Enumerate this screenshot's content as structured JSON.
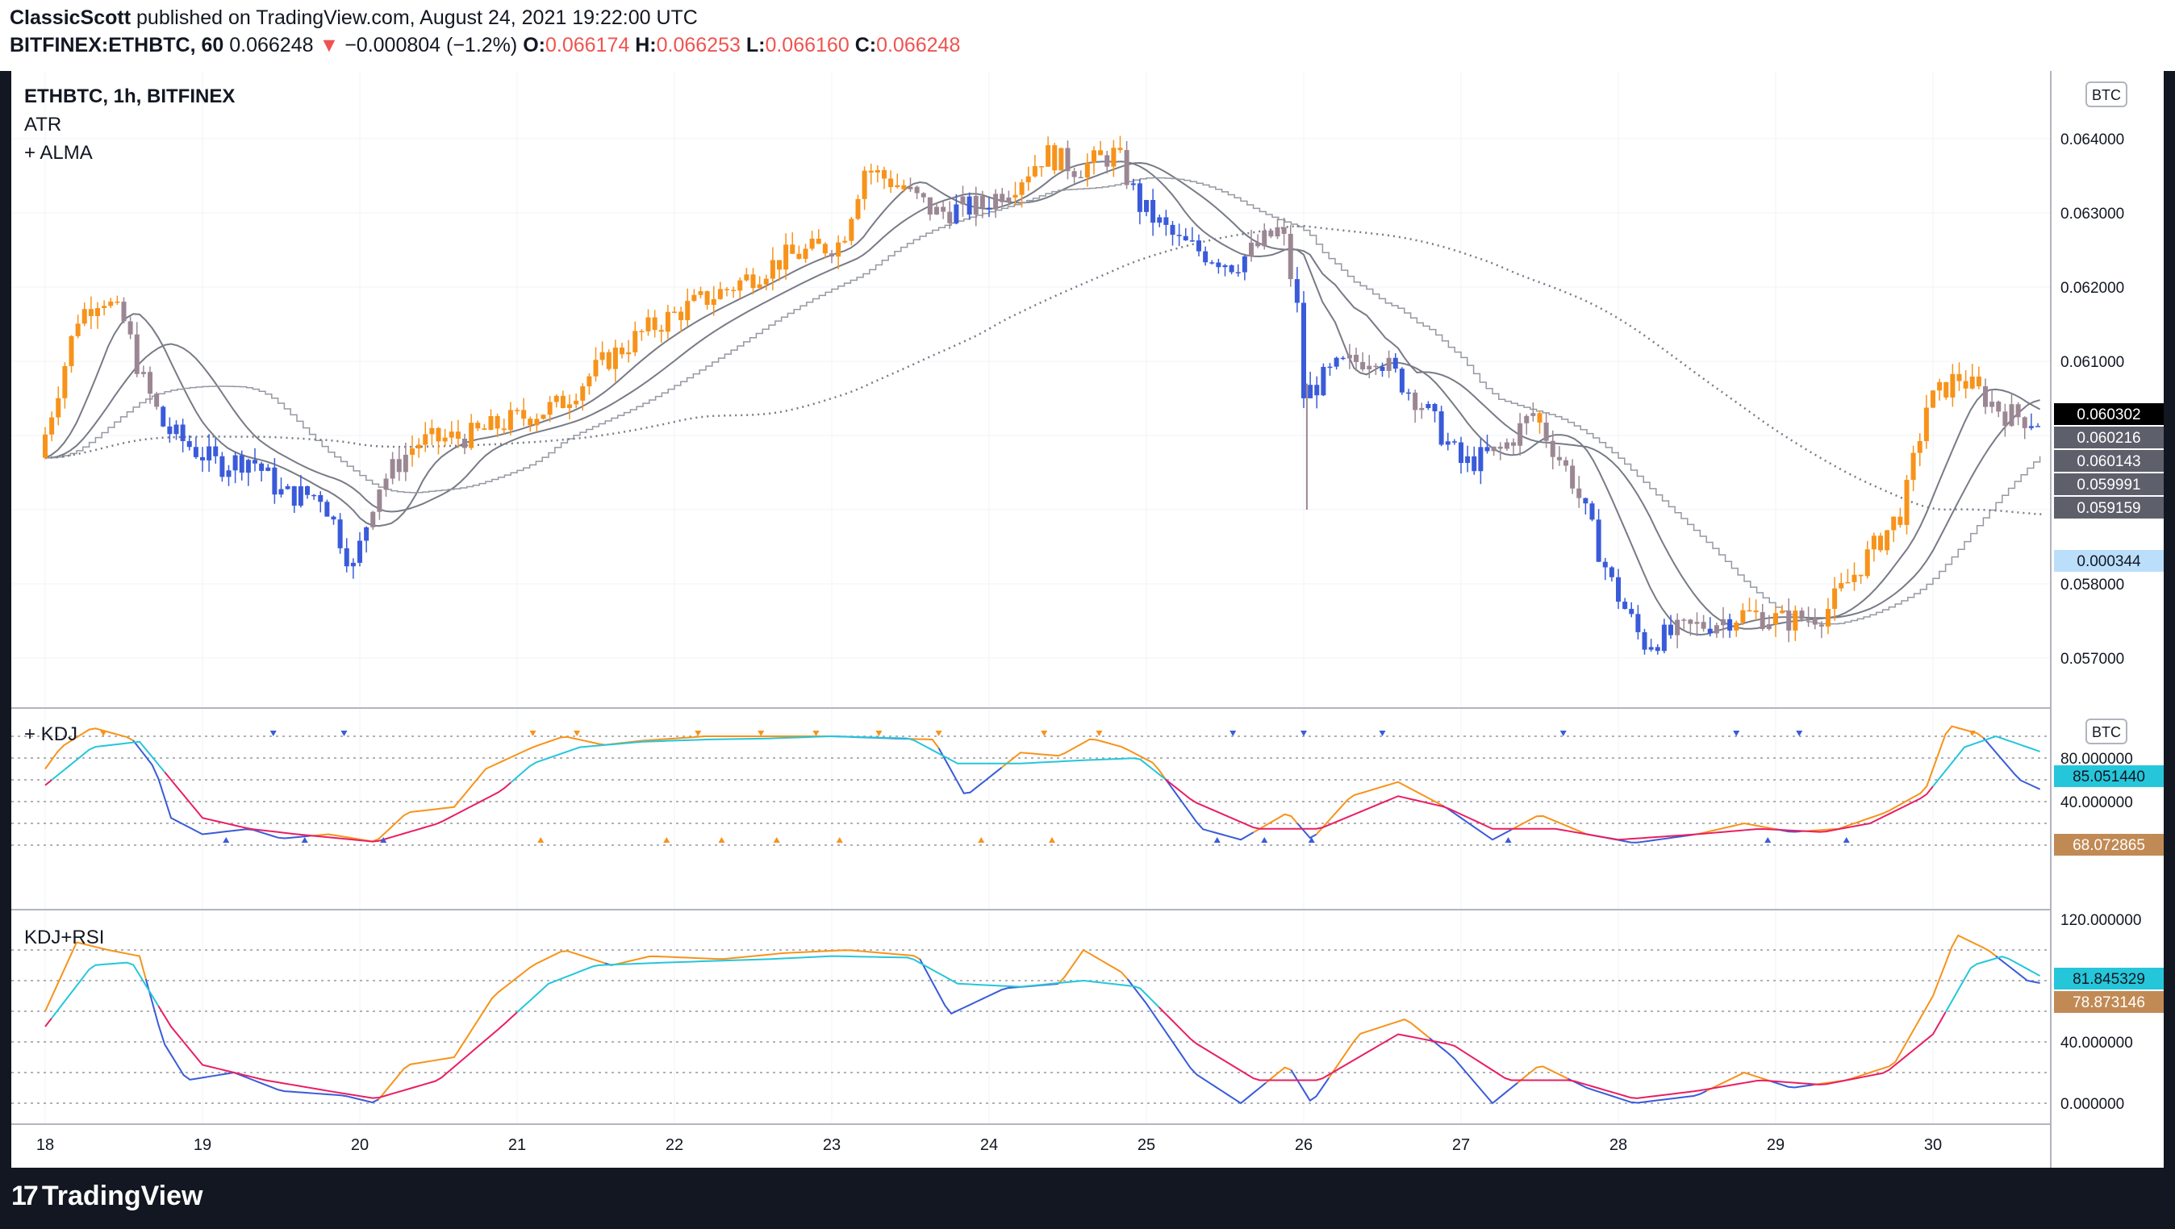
{
  "header": {
    "publisher": "ClassicScott",
    "published_text": "published on TradingView.com, August 24, 2021 19:22:00 UTC",
    "symbol": "BITFINEX:ETHBTC, 60",
    "last": "0.066248",
    "change": "−0.000804 (−1.2%)",
    "o_label": "O:",
    "o": "0.066174",
    "h_label": "H:",
    "h": "0.066253",
    "l_label": "L:",
    "l": "0.066160",
    "c_label": "C:",
    "c": "0.066248"
  },
  "panes": {
    "main": {
      "title": "ETHBTC, 1h, BITFINEX",
      "ind1": "ATR",
      "ind2": "+ ALMA",
      "currency": "BTC"
    },
    "kdj": {
      "title": "+ KDJ",
      "currency": "BTC",
      "top_tick": "120"
    },
    "kdjrsi": {
      "title": "KDJ+RSI"
    }
  },
  "price_labels": [
    "0.060302",
    "0.060216",
    "0.060143",
    "0.059991",
    "0.059159"
  ],
  "atr_label": "0.000344",
  "kdj_labels": [
    "85.051440",
    "68.072865"
  ],
  "kdjrsi_labels": [
    "81.845329",
    "78.873146"
  ],
  "footer": {
    "brand": "TradingView",
    "brand_mark": "17"
  },
  "colors": {
    "up": "#f7931a",
    "down": "#3a5bd9",
    "neutral": "#9b8793",
    "k_line": "#f7931a",
    "d_line": "#26c6da",
    "j_line": "#e91e63",
    "price_label_bg": "#5d606b",
    "atr_label_bg": "#bbdefb",
    "cyan_label_bg": "#26c6da",
    "brown_label_bg": "#c18a55"
  },
  "chart_data": {
    "type": "candlestick",
    "title": "ETHBTC, 1h, BITFINEX",
    "xlabel": "",
    "ylabel": "",
    "x_ticks": [
      "18",
      "19",
      "20",
      "21",
      "22",
      "23",
      "24",
      "25",
      "26",
      "27",
      "28",
      "29",
      "30"
    ],
    "main_y_ticks": [
      "0.064000",
      "0.063000",
      "0.062000",
      "0.061000",
      "0.060000",
      "0.059000",
      "0.058000",
      "0.057000"
    ],
    "main_ylim": [
      0.0563,
      0.0643
    ],
    "osc_y_ticks": [
      "120.000000",
      "80.000000",
      "40.000000",
      "0.000000"
    ],
    "osc_ylim": [
      -10,
      130
    ],
    "grid": true,
    "price_path": [
      [
        0,
        0.0597
      ],
      [
        0.25,
        0.0616
      ],
      [
        0.4,
        0.0619
      ],
      [
        0.55,
        0.0615
      ],
      [
        0.65,
        0.0608
      ],
      [
        0.8,
        0.0601
      ],
      [
        1.0,
        0.0598
      ],
      [
        1.15,
        0.0596
      ],
      [
        1.35,
        0.0597
      ],
      [
        1.55,
        0.0592
      ],
      [
        1.8,
        0.0592
      ],
      [
        2.0,
        0.0582
      ],
      [
        2.15,
        0.0593
      ],
      [
        2.4,
        0.0599
      ],
      [
        2.75,
        0.06
      ],
      [
        3.0,
        0.0602
      ],
      [
        3.3,
        0.0604
      ],
      [
        3.6,
        0.061
      ],
      [
        3.85,
        0.0614
      ],
      [
        4.1,
        0.0617
      ],
      [
        4.4,
        0.062
      ],
      [
        4.75,
        0.0624
      ],
      [
        5.1,
        0.0626
      ],
      [
        5.25,
        0.0636
      ],
      [
        5.45,
        0.0634
      ],
      [
        5.7,
        0.063
      ],
      [
        6.0,
        0.0631
      ],
      [
        6.2,
        0.0634
      ],
      [
        6.4,
        0.0638
      ],
      [
        6.6,
        0.0636
      ],
      [
        6.85,
        0.0638
      ],
      [
        7.0,
        0.0631
      ],
      [
        7.25,
        0.0626
      ],
      [
        7.6,
        0.0623
      ],
      [
        7.9,
        0.0628
      ],
      [
        8.0,
        0.0617
      ],
      [
        8.02,
        0.0605
      ],
      [
        8.25,
        0.0609
      ],
      [
        8.5,
        0.0611
      ],
      [
        8.8,
        0.0604
      ],
      [
        9.05,
        0.0596
      ],
      [
        9.3,
        0.0598
      ],
      [
        9.5,
        0.0603
      ],
      [
        9.75,
        0.0594
      ],
      [
        10.0,
        0.058
      ],
      [
        10.2,
        0.0572
      ],
      [
        10.5,
        0.0574
      ],
      [
        10.85,
        0.0576
      ],
      [
        11.1,
        0.0575
      ],
      [
        11.35,
        0.0576
      ],
      [
        11.6,
        0.0583
      ],
      [
        11.85,
        0.059
      ],
      [
        12.0,
        0.0604
      ],
      [
        12.2,
        0.0608
      ],
      [
        12.5,
        0.0603
      ],
      [
        12.7,
        0.0602
      ]
    ],
    "kdj_k_path": [
      [
        0,
        70
      ],
      [
        0.1,
        90
      ],
      [
        0.3,
        108
      ],
      [
        0.55,
        98
      ],
      [
        0.7,
        70
      ],
      [
        0.8,
        25
      ],
      [
        1.0,
        10
      ],
      [
        1.3,
        15
      ],
      [
        1.5,
        6
      ],
      [
        1.8,
        10
      ],
      [
        2.1,
        3
      ],
      [
        2.3,
        30
      ],
      [
        2.6,
        35
      ],
      [
        2.8,
        70
      ],
      [
        3.1,
        90
      ],
      [
        3.3,
        100
      ],
      [
        3.55,
        92
      ],
      [
        3.8,
        96
      ],
      [
        4.2,
        100
      ],
      [
        4.6,
        100
      ],
      [
        5.0,
        100
      ],
      [
        5.4,
        98
      ],
      [
        5.65,
        97
      ],
      [
        5.85,
        45
      ],
      [
        6.2,
        85
      ],
      [
        6.45,
        82
      ],
      [
        6.65,
        98
      ],
      [
        6.85,
        90
      ],
      [
        7.05,
        75
      ],
      [
        7.35,
        15
      ],
      [
        7.6,
        5
      ],
      [
        7.9,
        30
      ],
      [
        8.05,
        5
      ],
      [
        8.3,
        45
      ],
      [
        8.6,
        58
      ],
      [
        8.9,
        35
      ],
      [
        9.2,
        5
      ],
      [
        9.5,
        28
      ],
      [
        9.8,
        10
      ],
      [
        10.1,
        2
      ],
      [
        10.5,
        10
      ],
      [
        10.8,
        20
      ],
      [
        11.1,
        12
      ],
      [
        11.4,
        15
      ],
      [
        11.7,
        30
      ],
      [
        11.95,
        50
      ],
      [
        12.1,
        110
      ],
      [
        12.3,
        102
      ],
      [
        12.55,
        60
      ],
      [
        12.7,
        50
      ]
    ],
    "kdj_d_path": [
      [
        0,
        55
      ],
      [
        0.3,
        90
      ],
      [
        0.6,
        95
      ],
      [
        0.8,
        60
      ],
      [
        1.0,
        25
      ],
      [
        1.3,
        15
      ],
      [
        1.6,
        10
      ],
      [
        2.1,
        3
      ],
      [
        2.5,
        20
      ],
      [
        2.9,
        50
      ],
      [
        3.1,
        75
      ],
      [
        3.4,
        90
      ],
      [
        3.8,
        95
      ],
      [
        4.2,
        97
      ],
      [
        4.6,
        98
      ],
      [
        5.0,
        100
      ],
      [
        5.5,
        98
      ],
      [
        5.8,
        75
      ],
      [
        6.2,
        75
      ],
      [
        6.6,
        78
      ],
      [
        6.95,
        80
      ],
      [
        7.3,
        40
      ],
      [
        7.7,
        15
      ],
      [
        8.1,
        15
      ],
      [
        8.6,
        45
      ],
      [
        8.9,
        35
      ],
      [
        9.2,
        15
      ],
      [
        9.6,
        15
      ],
      [
        10.0,
        5
      ],
      [
        10.5,
        10
      ],
      [
        10.9,
        15
      ],
      [
        11.3,
        12
      ],
      [
        11.6,
        20
      ],
      [
        11.95,
        45
      ],
      [
        12.2,
        90
      ],
      [
        12.4,
        100
      ],
      [
        12.7,
        85
      ]
    ],
    "kdjrsi_k_path": [
      [
        0,
        60
      ],
      [
        0.2,
        105
      ],
      [
        0.4,
        100
      ],
      [
        0.6,
        96
      ],
      [
        0.75,
        40
      ],
      [
        0.9,
        15
      ],
      [
        1.2,
        20
      ],
      [
        1.5,
        8
      ],
      [
        1.9,
        5
      ],
      [
        2.1,
        0
      ],
      [
        2.3,
        25
      ],
      [
        2.6,
        30
      ],
      [
        2.85,
        70
      ],
      [
        3.1,
        90
      ],
      [
        3.3,
        100
      ],
      [
        3.6,
        90
      ],
      [
        3.85,
        96
      ],
      [
        4.3,
        94
      ],
      [
        4.7,
        98
      ],
      [
        5.1,
        100
      ],
      [
        5.55,
        96
      ],
      [
        5.75,
        58
      ],
      [
        6.1,
        75
      ],
      [
        6.45,
        78
      ],
      [
        6.6,
        100
      ],
      [
        6.85,
        85
      ],
      [
        7.0,
        65
      ],
      [
        7.3,
        20
      ],
      [
        7.6,
        0
      ],
      [
        7.9,
        25
      ],
      [
        8.05,
        0
      ],
      [
        8.35,
        45
      ],
      [
        8.65,
        55
      ],
      [
        8.95,
        30
      ],
      [
        9.2,
        0
      ],
      [
        9.5,
        25
      ],
      [
        9.8,
        10
      ],
      [
        10.1,
        0
      ],
      [
        10.5,
        5
      ],
      [
        10.8,
        20
      ],
      [
        11.1,
        10
      ],
      [
        11.45,
        15
      ],
      [
        11.75,
        25
      ],
      [
        12.0,
        70
      ],
      [
        12.15,
        110
      ],
      [
        12.35,
        100
      ],
      [
        12.6,
        80
      ],
      [
        12.7,
        78
      ]
    ],
    "kdjrsi_d_path": [
      [
        0,
        50
      ],
      [
        0.3,
        90
      ],
      [
        0.55,
        92
      ],
      [
        0.8,
        50
      ],
      [
        1.0,
        25
      ],
      [
        1.4,
        15
      ],
      [
        1.8,
        8
      ],
      [
        2.1,
        3
      ],
      [
        2.5,
        15
      ],
      [
        2.9,
        50
      ],
      [
        3.2,
        78
      ],
      [
        3.5,
        90
      ],
      [
        4.0,
        92
      ],
      [
        4.6,
        94
      ],
      [
        5.0,
        96
      ],
      [
        5.5,
        95
      ],
      [
        5.8,
        78
      ],
      [
        6.2,
        76
      ],
      [
        6.6,
        80
      ],
      [
        6.95,
        76
      ],
      [
        7.3,
        40
      ],
      [
        7.7,
        15
      ],
      [
        8.1,
        15
      ],
      [
        8.6,
        45
      ],
      [
        8.95,
        38
      ],
      [
        9.3,
        15
      ],
      [
        9.7,
        15
      ],
      [
        10.1,
        3
      ],
      [
        10.5,
        8
      ],
      [
        10.9,
        15
      ],
      [
        11.3,
        12
      ],
      [
        11.7,
        20
      ],
      [
        12.0,
        45
      ],
      [
        12.25,
        90
      ],
      [
        12.45,
        96
      ],
      [
        12.7,
        82
      ]
    ]
  }
}
